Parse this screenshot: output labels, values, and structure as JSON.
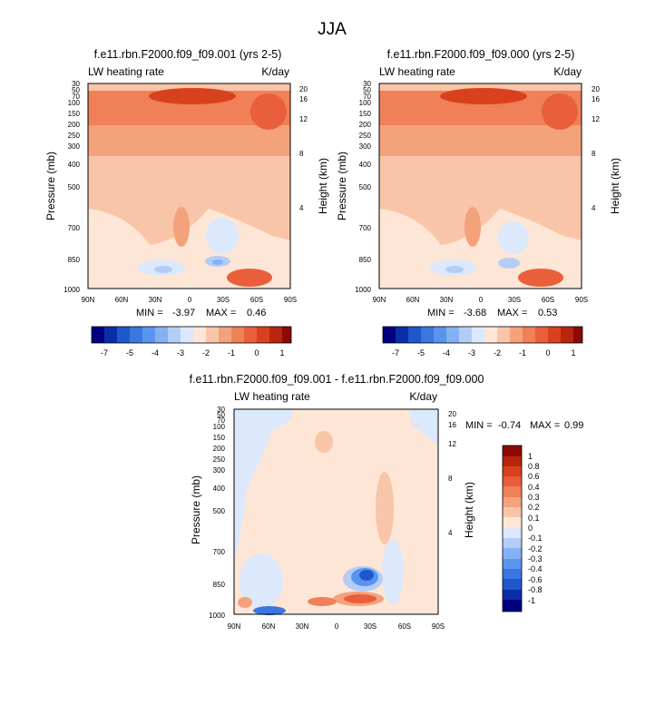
{
  "page_title": "JJA",
  "colors": {
    "neg8": "#00007f",
    "neg7": "#0a2ea8",
    "neg6": "#1f58cc",
    "neg5": "#3a78e0",
    "neg4": "#5a94ef",
    "neg3": "#84b0f4",
    "neg2": "#b4cdf7",
    "neg1": "#dce8fb",
    "pos1": "#fde6d6",
    "pos2": "#f9c5a8",
    "pos3": "#f4a27c",
    "pos4": "#ef8058",
    "pos5": "#e95f3c",
    "pos6": "#d9411e",
    "pos7": "#b8260e",
    "pos8": "#8b0a05"
  },
  "chart_data": [
    {
      "type": "heatmap",
      "panel": "top-left",
      "title": "f.e11.rbn.F2000.f09_f09.001 (yrs 2-5)",
      "left_label": "LW heating rate",
      "right_label": "K/day",
      "xlabel": "",
      "ylabel": "Pressure (mb)",
      "ylabel_right": "Height (km)",
      "x_ticks": [
        "90N",
        "60N",
        "30N",
        "0",
        "30S",
        "60S",
        "90S"
      ],
      "y_ticks": [
        "30",
        "50",
        "70",
        "100",
        "150",
        "200",
        "250",
        "300",
        "400",
        "500",
        "700",
        "850",
        "1000"
      ],
      "height_ticks": [
        "20",
        "16",
        "12",
        "8",
        "4"
      ],
      "min_label": "MIN =",
      "min_value": "-3.97",
      "max_label": "MAX =",
      "max_value": "0.46",
      "colorbar_labels": [
        "-7",
        "-5",
        "-4",
        "-3",
        "-2",
        "-1",
        "0",
        "1"
      ]
    },
    {
      "type": "heatmap",
      "panel": "top-right",
      "title": "f.e11.rbn.F2000.f09_f09.000 (yrs 2-5)",
      "left_label": "LW heating rate",
      "right_label": "K/day",
      "xlabel": "",
      "ylabel": "Pressure (mb)",
      "ylabel_right": "Height (km)",
      "x_ticks": [
        "90N",
        "60N",
        "30N",
        "0",
        "30S",
        "60S",
        "90S"
      ],
      "y_ticks": [
        "30",
        "50",
        "70",
        "100",
        "150",
        "200",
        "250",
        "300",
        "400",
        "500",
        "700",
        "850",
        "1000"
      ],
      "height_ticks": [
        "20",
        "16",
        "12",
        "8",
        "4"
      ],
      "min_label": "MIN =",
      "min_value": "-3.68",
      "max_label": "MAX =",
      "max_value": "0.53",
      "colorbar_labels": [
        "-7",
        "-5",
        "-4",
        "-3",
        "-2",
        "-1",
        "0",
        "1"
      ]
    },
    {
      "type": "heatmap",
      "panel": "bottom-difference",
      "title": "f.e11.rbn.F2000.f09_f09.001 - f.e11.rbn.F2000.f09_f09.000",
      "left_label": "LW heating rate",
      "right_label": "K/day",
      "xlabel": "",
      "ylabel": "Pressure (mb)",
      "ylabel_right": "Height (km)",
      "x_ticks": [
        "90N",
        "60N",
        "30N",
        "0",
        "30S",
        "60S",
        "90S"
      ],
      "y_ticks": [
        "30",
        "50",
        "70",
        "100",
        "150",
        "200",
        "250",
        "300",
        "400",
        "500",
        "700",
        "850",
        "1000"
      ],
      "height_ticks": [
        "20",
        "16",
        "12",
        "8",
        "4"
      ],
      "min_label": "MIN =",
      "min_value": "-0.74",
      "max_label": "MAX =",
      "max_value": "0.99",
      "colorbar_labels": [
        "1",
        "0.8",
        "0.6",
        "0.4",
        "0.3",
        "0.2",
        "0.1",
        "0",
        "-0.1",
        "-0.2",
        "-0.3",
        "-0.4",
        "-0.6",
        "-0.8",
        "-1"
      ]
    }
  ]
}
